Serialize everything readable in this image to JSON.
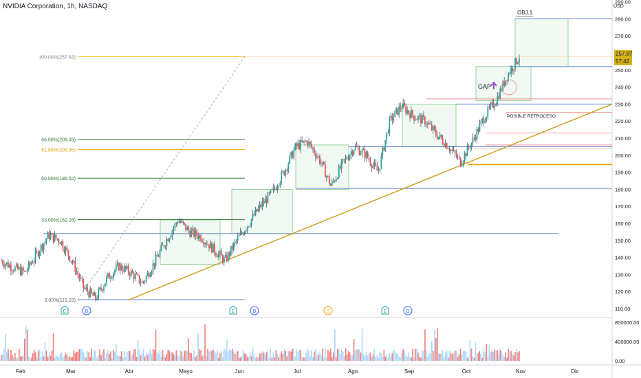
{
  "title": "NVIDIA Corporation, 1h, NASDAQ",
  "currency": "USD",
  "current_price": "257.87",
  "countdown": "57:42",
  "annotations": {
    "obj": "OBJ.1",
    "gap": "GAP",
    "retroceso": "POSIBLE RETROCESO"
  },
  "event_markers": [
    "E",
    "D",
    "E",
    "D",
    "S",
    "E",
    "D"
  ],
  "colors": {
    "candle_up": "#26a69a",
    "candle_down": "#ef5350",
    "fib_green": "#2e7d32",
    "fib_gold": "#f0b400",
    "trendline": "#c9a227",
    "blue_line": "#5b7fd6",
    "box_fill": "#e8f5e9",
    "box_stroke": "#81c784",
    "badge": "#d4b21c"
  },
  "chart_data": {
    "type": "candlestick",
    "title": "NVIDIA Corporation, 1h, NASDAQ",
    "x_ticks": [
      "Feb",
      "Mar",
      "Abr",
      "Mayo",
      "Jun",
      "Jul",
      "Ago",
      "Sep",
      "Oct",
      "Nov",
      "Dic"
    ],
    "y_ticks": [
      110,
      120,
      130,
      140,
      150,
      160,
      170,
      180,
      190,
      200,
      210,
      220,
      230,
      240,
      250,
      260,
      270,
      280,
      290
    ],
    "ylim": [
      104,
      292
    ],
    "volume_ticks": [
      "800000.00",
      "400000.00",
      "0.00"
    ],
    "fibonacci": [
      {
        "label": "100.00%(257.82)",
        "value": 257.82
      },
      {
        "label": "66.00%(209.33)",
        "value": 209.33
      },
      {
        "label": "61.80%(203.35)",
        "value": 203.35
      },
      {
        "label": "50.00%(186.52)",
        "value": 186.52
      },
      {
        "label": "33.00%(162.28)",
        "value": 162.28
      },
      {
        "label": "0.00%(115.23)",
        "value": 115.23
      }
    ],
    "horizontal_levels": [
      280,
      252,
      230,
      225,
      213,
      205,
      194.5,
      180.5,
      154
    ],
    "price_path": [
      [
        "Feb",
        138
      ],
      [
        "Feb",
        134
      ],
      [
        "Feb",
        131
      ],
      [
        "Feb",
        142
      ],
      [
        "Feb",
        153
      ],
      [
        "Feb",
        150
      ],
      [
        "Mar",
        138
      ],
      [
        "Mar",
        122
      ],
      [
        "Mar",
        116
      ],
      [
        "Mar",
        128
      ],
      [
        "Mar",
        135
      ],
      [
        "Mar",
        131
      ],
      [
        "Abr",
        125
      ],
      [
        "Abr",
        137
      ],
      [
        "Abr",
        150
      ],
      [
        "Abr",
        162
      ],
      [
        "Abr",
        155
      ],
      [
        "Mayo",
        152
      ],
      [
        "Mayo",
        145
      ],
      [
        "Mayo",
        138
      ],
      [
        "Mayo",
        150
      ],
      [
        "Mayo",
        160
      ],
      [
        "Jun",
        170
      ],
      [
        "Jun",
        178
      ],
      [
        "Jun",
        190
      ],
      [
        "Jun",
        205
      ],
      [
        "Jun",
        208
      ],
      [
        "Jul",
        198
      ],
      [
        "Jul",
        182
      ],
      [
        "Jul",
        195
      ],
      [
        "Jul",
        205
      ],
      [
        "Ago",
        200
      ],
      [
        "Ago",
        190
      ],
      [
        "Ago",
        220
      ],
      [
        "Ago",
        229
      ],
      [
        "Ago",
        223
      ],
      [
        "Sep",
        220
      ],
      [
        "Sep",
        212
      ],
      [
        "Sep",
        205
      ],
      [
        "Sep",
        196
      ],
      [
        "Oct",
        208
      ],
      [
        "Oct",
        222
      ],
      [
        "Oct",
        232
      ],
      [
        "Oct",
        247
      ],
      [
        "Oct",
        258
      ]
    ],
    "annotation_values": {
      "gap_zone": [
        232,
        252
      ],
      "target_zone": [
        252,
        280
      ]
    }
  }
}
